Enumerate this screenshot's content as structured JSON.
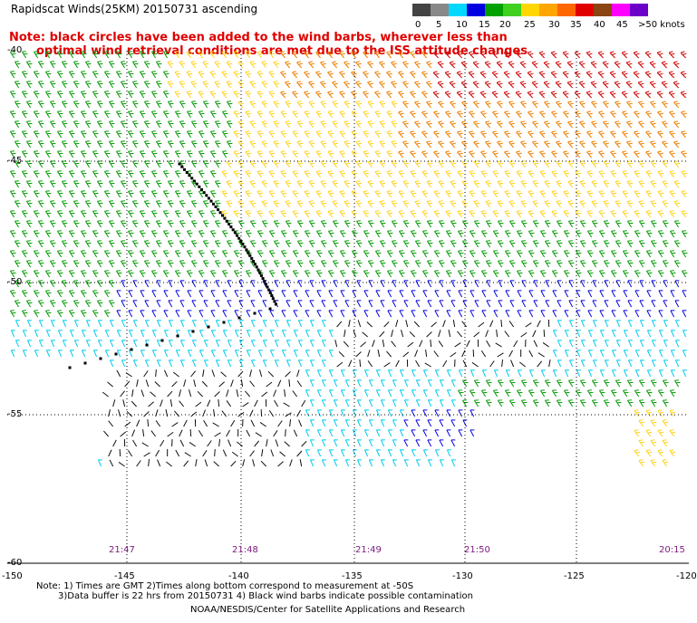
{
  "title": "Rapidscat Winds(25KM) 20150731 ascending",
  "note": {
    "line1": "Note: black circles have been added to the wind barbs, wherever less than",
    "line2": "optimal wind retrieval conditions are met due to the ISS attitude changes"
  },
  "legend": {
    "labels": [
      "0",
      "5",
      "10",
      "15",
      "20",
      "25",
      "30",
      "35",
      "40",
      "45",
      ">50 knots"
    ],
    "colors": [
      "#444444",
      "#888888",
      "#00d8ff",
      "#0000e0",
      "#00a000",
      "#40d020",
      "#ffd700",
      "#ffa500",
      "#ff6600",
      "#e00000",
      "#8b4513",
      "#ff00ff",
      "#6a00c8"
    ]
  },
  "map": {
    "lat_labels": [
      "-40",
      "-45",
      "-50",
      "-55",
      "-60"
    ],
    "lon_labels": [
      "-150",
      "-145",
      "-140",
      "-135",
      "-130",
      "-125",
      "-120"
    ],
    "time_labels": [
      "21:47",
      "21:48",
      "21:49",
      "21:50",
      "20:15"
    ]
  },
  "footer": {
    "line1": "Note: 1) Times are GMT 2)Times along bottom correspond to measurement at -50S",
    "line2": "3)Data buffer is 22 hrs from 20150731 4) Black wind barbs indicate possible contamination",
    "line3": "NOAA/NESDIS/Center for Satellite Applications and Research"
  }
}
